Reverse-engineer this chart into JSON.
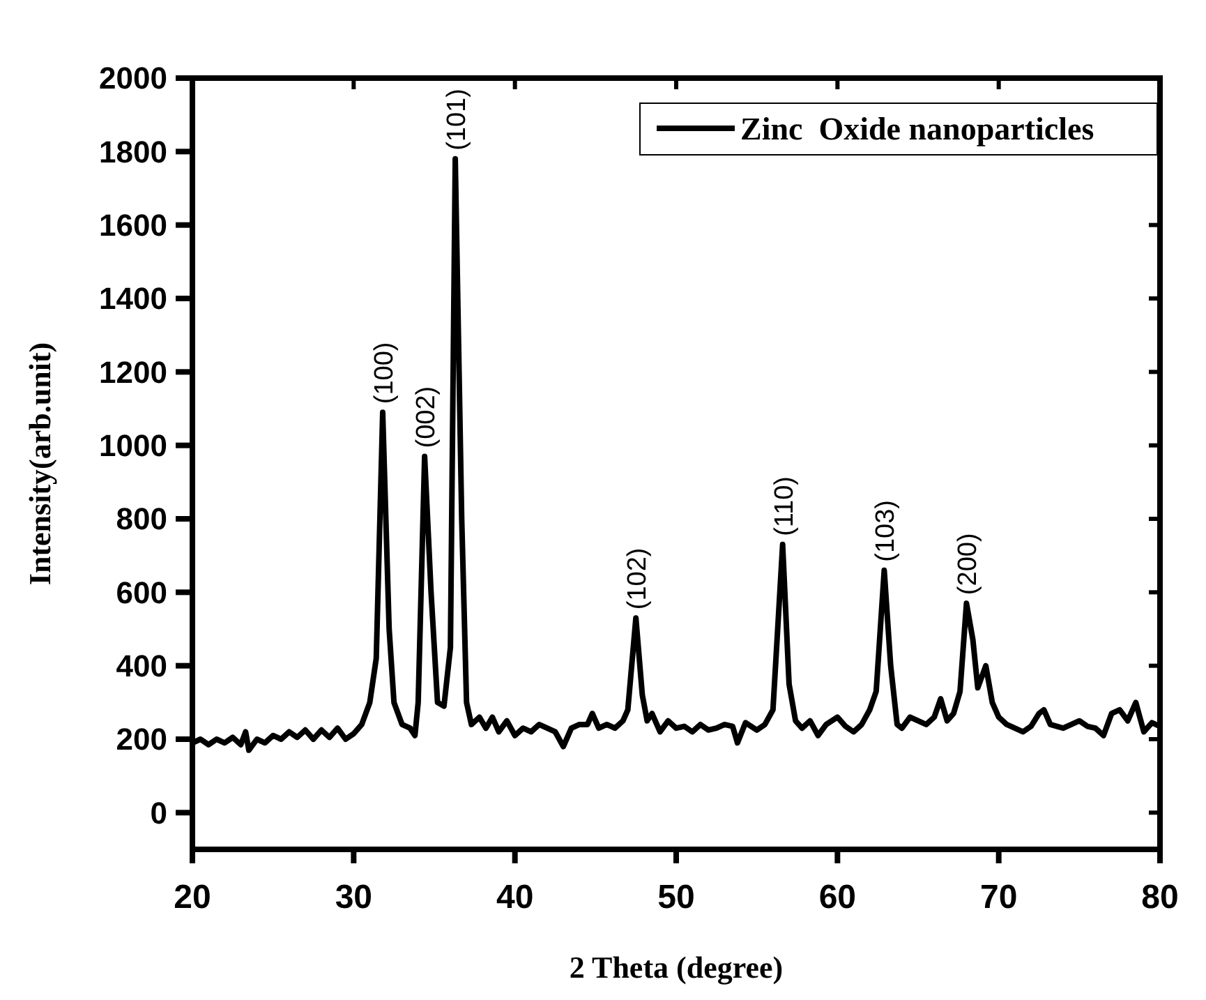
{
  "chart_data": {
    "type": "line",
    "xlabel": "2 Theta (degree)",
    "ylabel": "Intensity(arb.unit)",
    "xlim": [
      20,
      80
    ],
    "xticks": [
      20,
      30,
      40,
      50,
      60,
      70,
      80
    ],
    "ylim": [
      -100,
      2000
    ],
    "yticks": [
      0,
      200,
      400,
      600,
      800,
      1000,
      1200,
      1400,
      1600,
      1800,
      2000
    ],
    "grid": false,
    "legend": "top right",
    "marker": "none",
    "line_style": "solid",
    "series": [
      {
        "name": "Zinc  Oxide nanoparticles",
        "color": "#000000",
        "x": [
          20,
          20.5,
          21,
          21.5,
          22,
          22.5,
          23,
          23.3,
          23.5,
          24,
          24.5,
          25,
          25.5,
          26,
          26.5,
          27,
          27.5,
          28,
          28.5,
          29,
          29.5,
          30,
          30.5,
          31,
          31.4,
          31.8,
          32.2,
          32.5,
          33,
          33.5,
          33.8,
          34,
          34.4,
          34.8,
          35.2,
          35.6,
          36,
          36.3,
          36.7,
          37,
          37.3,
          37.8,
          38.2,
          38.6,
          39,
          39.5,
          40,
          40.5,
          41,
          41.5,
          42,
          42.5,
          43,
          43.5,
          44,
          44.5,
          44.8,
          45.2,
          45.7,
          46.2,
          46.7,
          47,
          47.5,
          47.9,
          48.2,
          48.5,
          49,
          49.5,
          50,
          50.5,
          51,
          51.5,
          52,
          52.5,
          53,
          53.5,
          53.8,
          54.3,
          55,
          55.5,
          56,
          56.6,
          57,
          57.4,
          57.8,
          58.3,
          58.8,
          59.3,
          60,
          60.5,
          61,
          61.5,
          62,
          62.4,
          62.9,
          63.3,
          63.7,
          64,
          64.5,
          65,
          65.5,
          66,
          66.4,
          66.8,
          67.2,
          67.6,
          68,
          68.4,
          68.7,
          69.2,
          69.6,
          70,
          70.5,
          71,
          71.5,
          72,
          72.5,
          72.8,
          73.2,
          74,
          74.5,
          75,
          75.5,
          76,
          76.5,
          77,
          77.5,
          78,
          78.5,
          79,
          79.5,
          80
        ],
        "values": [
          190,
          200,
          185,
          200,
          190,
          205,
          185,
          220,
          170,
          200,
          190,
          210,
          200,
          220,
          205,
          225,
          200,
          225,
          205,
          230,
          200,
          215,
          240,
          300,
          420,
          1090,
          500,
          300,
          240,
          230,
          210,
          300,
          970,
          600,
          300,
          290,
          450,
          1780,
          800,
          300,
          240,
          260,
          230,
          260,
          220,
          250,
          210,
          230,
          220,
          240,
          230,
          220,
          180,
          230,
          240,
          240,
          270,
          230,
          240,
          230,
          250,
          280,
          530,
          320,
          250,
          270,
          220,
          250,
          230,
          235,
          220,
          240,
          225,
          230,
          240,
          235,
          190,
          245,
          225,
          240,
          280,
          730,
          350,
          250,
          230,
          250,
          210,
          240,
          260,
          235,
          220,
          240,
          280,
          330,
          660,
          400,
          240,
          230,
          260,
          250,
          240,
          260,
          310,
          250,
          270,
          330,
          570,
          470,
          340,
          400,
          300,
          260,
          240,
          230,
          220,
          235,
          270,
          280,
          240,
          230,
          240,
          250,
          235,
          230,
          210,
          270,
          280,
          250,
          300,
          220,
          245,
          235
        ]
      }
    ],
    "annotations": [
      {
        "text": "(100)",
        "x": 31.8,
        "y": 1090
      },
      {
        "text": "(002)",
        "x": 34.4,
        "y": 970
      },
      {
        "text": "(101)",
        "x": 36.3,
        "y": 1780
      },
      {
        "text": "(102)",
        "x": 47.5,
        "y": 530
      },
      {
        "text": "(110)",
        "x": 56.6,
        "y": 730
      },
      {
        "text": "(103)",
        "x": 62.9,
        "y": 660
      },
      {
        "text": "(200)",
        "x": 68,
        "y": 570
      }
    ]
  }
}
